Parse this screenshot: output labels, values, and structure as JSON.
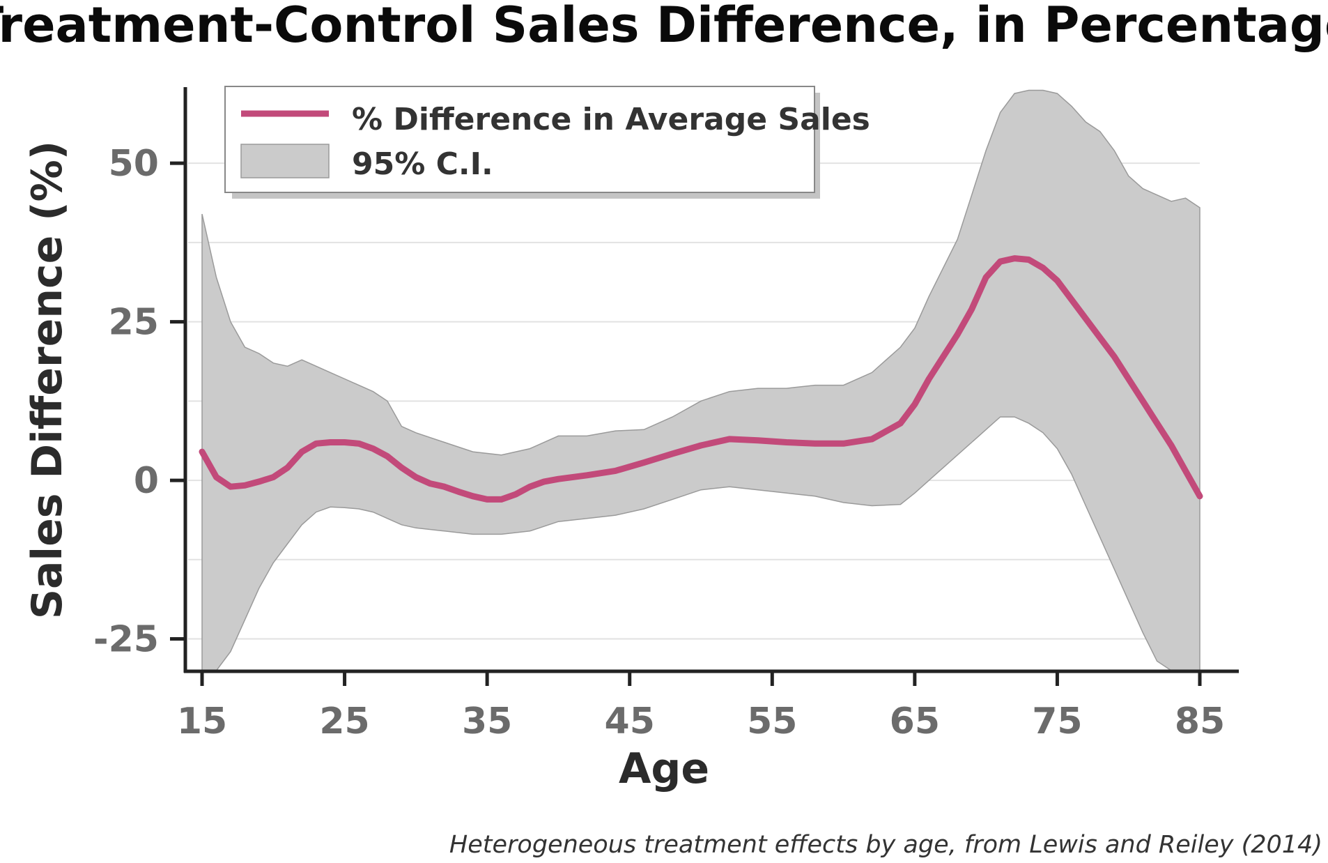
{
  "chart_data": {
    "type": "line",
    "title": "Treatment-Control Sales Difference, in Percentage",
    "xlabel": "Age",
    "ylabel": "Sales Difference (%)",
    "caption": "Heterogeneous treatment effects by age, from Lewis and Reiley (2014)",
    "xlim": [
      15,
      85
    ],
    "ylim": [
      -30,
      62
    ],
    "x_ticks": [
      "15",
      "25",
      "35",
      "45",
      "55",
      "65",
      "75",
      "85"
    ],
    "y_ticks": [
      "-25",
      "0",
      "25",
      "50"
    ],
    "grid": "horizontal",
    "legend_position": "top-left",
    "line_color": "#c24a7a",
    "band_color": "#cbcbcb",
    "series": [
      {
        "name": "% Difference in Average Sales",
        "x": [
          15,
          16,
          17,
          18,
          19,
          20,
          21,
          22,
          23,
          24,
          25,
          26,
          27,
          28,
          29,
          30,
          31,
          32,
          33,
          34,
          35,
          36,
          37,
          38,
          39,
          40,
          42,
          44,
          46,
          48,
          50,
          52,
          54,
          56,
          58,
          60,
          62,
          64,
          65,
          66,
          68,
          69,
          70,
          71,
          72,
          73,
          74,
          75,
          76,
          77,
          78,
          79,
          80,
          81,
          82,
          83,
          84,
          85
        ],
        "y": [
          4.5,
          0.5,
          -1,
          -0.8,
          -0.2,
          0.5,
          2,
          4.5,
          5.8,
          6,
          6,
          5.8,
          5,
          3.8,
          2,
          0.5,
          -0.5,
          -1,
          -1.8,
          -2.5,
          -3,
          -3,
          -2.2,
          -1,
          -0.2,
          0.2,
          0.8,
          1.5,
          2.8,
          4.2,
          5.5,
          6.5,
          6.3,
          6,
          5.8,
          5.8,
          6.5,
          9,
          12,
          16,
          23,
          27,
          32,
          34.5,
          35,
          34.8,
          33.5,
          31.5,
          28.5,
          25.5,
          22.5,
          19.5,
          16,
          12.5,
          9,
          5.5,
          1.5,
          -2.5
        ]
      },
      {
        "name": "95% C.I.",
        "x": [
          15,
          16,
          17,
          18,
          19,
          20,
          21,
          22,
          23,
          24,
          25,
          26,
          27,
          28,
          29,
          30,
          32,
          34,
          36,
          38,
          40,
          42,
          44,
          46,
          48,
          50,
          52,
          54,
          56,
          58,
          60,
          62,
          64,
          65,
          66,
          68,
          69,
          70,
          71,
          72,
          73,
          74,
          75,
          76,
          77,
          78,
          79,
          80,
          81,
          82,
          83,
          84,
          85
        ],
        "lower": [
          -30,
          -30,
          -27,
          -22,
          -17,
          -13,
          -10,
          -7,
          -5,
          -4.2,
          -4.3,
          -4.5,
          -5,
          -6,
          -7,
          -7.5,
          -8,
          -8.5,
          -8.5,
          -8,
          -6.5,
          -6,
          -5.5,
          -4.5,
          -3,
          -1.5,
          -1,
          -1.5,
          -2,
          -2.5,
          -3.5,
          -4,
          -3.8,
          -2,
          0,
          4,
          6,
          8,
          10,
          10,
          9,
          7.5,
          5,
          1,
          -4,
          -9,
          -14,
          -19,
          -24,
          -28.5,
          -30,
          -30,
          -30
        ],
        "upper": [
          42,
          32,
          25,
          21,
          20,
          18.5,
          18,
          19,
          18,
          17,
          16,
          15,
          14,
          12.5,
          8.5,
          7.5,
          6,
          4.5,
          4,
          5,
          7,
          7,
          7.8,
          8,
          10,
          12.5,
          14,
          14.5,
          14.5,
          15,
          15,
          17,
          21,
          24,
          29,
          38,
          45,
          52,
          58,
          61,
          61.5,
          61.5,
          61,
          59,
          56.5,
          55,
          52,
          48,
          46,
          45,
          44,
          44.5,
          43
        ]
      }
    ]
  }
}
